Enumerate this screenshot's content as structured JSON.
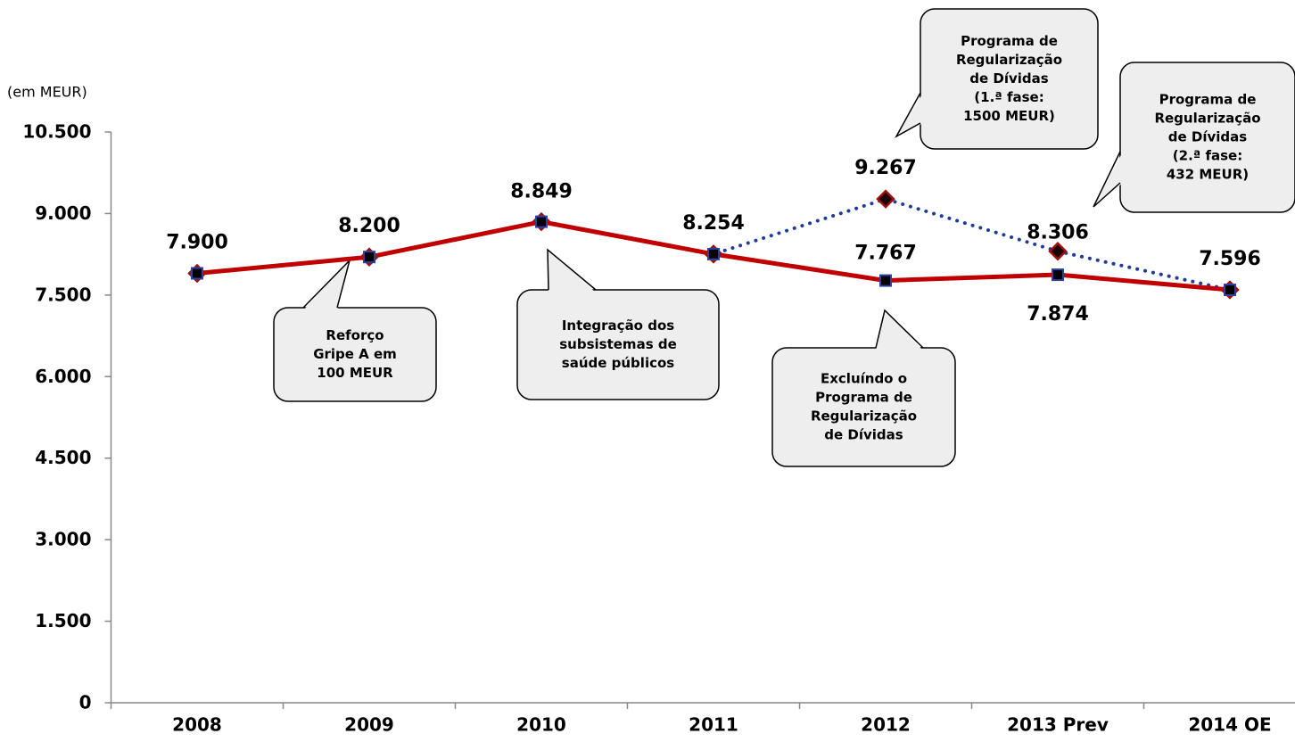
{
  "chart_data": {
    "type": "line",
    "unit_label": "(em MEUR)",
    "categories": [
      "2008",
      "2009",
      "2010",
      "2011",
      "2012",
      "2013 Prev",
      "2014 OE"
    ],
    "series": [
      {
        "color": "#1f3c99",
        "marker_color": "#a01010",
        "style": "dotted",
        "marker": "diamond",
        "values": [
          7900,
          8200,
          8849,
          8254,
          9267,
          8306,
          7596
        ],
        "value_labels": [
          "7.900",
          "8.200",
          "8.849",
          "8.254",
          "9.267",
          "8.306",
          "7.596"
        ]
      },
      {
        "color": "#c00000",
        "marker_color": "#3040a0",
        "style": "solid",
        "marker": "square",
        "values": [
          7900,
          8200,
          8849,
          8254,
          7767,
          7874,
          7596
        ],
        "value_labels": [
          null,
          null,
          null,
          null,
          "7.767",
          "7.874",
          null
        ]
      }
    ],
    "ylim": [
      0,
      10500
    ],
    "yticks": [
      0,
      {
        "value": 1500,
        "label": "1.500"
      },
      {
        "value": 3000,
        "label": "3.000"
      },
      {
        "value": 4500,
        "label": "4.500"
      },
      {
        "value": 6000,
        "label": "6.000"
      },
      {
        "value": 7500,
        "label": "7.500"
      },
      {
        "value": 9000,
        "label": "9.000"
      },
      {
        "value": 10500,
        "label": "10.500"
      }
    ],
    "annotations": [
      {
        "lines": [
          "Reforço",
          "Gripe A em",
          "100 MEUR"
        ]
      },
      {
        "lines": [
          "Integração dos",
          "subsistemas de",
          "saúde públicos"
        ]
      },
      {
        "lines": [
          "Excluíndo o",
          "Programa de",
          "Regularização",
          "de Dívidas"
        ]
      },
      {
        "lines": [
          "Programa de",
          "Regularização",
          "de Dívidas",
          "(1.ª fase:",
          "1500 MEUR)"
        ]
      },
      {
        "lines": [
          "Programa de",
          "Regularização",
          "de Dívidas",
          "(2.ª fase:",
          "432 MEUR)"
        ]
      }
    ]
  }
}
